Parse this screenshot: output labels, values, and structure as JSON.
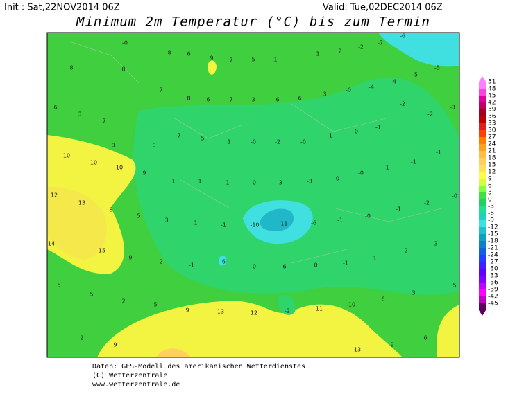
{
  "header": {
    "init": "Init : Sat,22NOV2014 06Z",
    "valid": "Valid: Tue,02DEC2014 06Z",
    "title": "Minimum 2m Temperatur (°C) bis zum Termin"
  },
  "footer": [
    "Daten: GFS-Modell des amerikanischen Wetterdienstes",
    "(C) Wetterzentrale",
    "www.wetterzentrale.de"
  ],
  "colorbar": {
    "levels": [
      51,
      48,
      45,
      42,
      39,
      36,
      33,
      30,
      27,
      24,
      21,
      18,
      15,
      12,
      9,
      6,
      3,
      0,
      -3,
      -6,
      -9,
      -12,
      -15,
      -18,
      -21,
      -24,
      -27,
      -30,
      -33,
      -36,
      -39,
      -42,
      -45
    ],
    "colors": [
      "#ff80ff",
      "#ff40e0",
      "#e000a0",
      "#c00060",
      "#a00020",
      "#c00000",
      "#e02020",
      "#ff4000",
      "#ff8000",
      "#ffa020",
      "#ffc040",
      "#ffd060",
      "#ffe060",
      "#ffff40",
      "#d0ff40",
      "#80ff40",
      "#40e040",
      "#20d060",
      "#20e090",
      "#20d0c0",
      "#40e0e0",
      "#20c0d0",
      "#10a0c0",
      "#1080c0",
      "#1060e0",
      "#2040ff",
      "#4020ff",
      "#6000ff",
      "#8000ff",
      "#c000ff",
      "#ff00ff",
      "#c000c0",
      "#600060"
    ]
  },
  "map_labels": [
    "-0",
    "8",
    "6",
    "9",
    "7",
    "5",
    "1",
    "1",
    "2",
    "-2",
    "-7",
    "-6",
    "-5",
    "-5",
    "8",
    "8",
    "-4",
    "-4",
    "-0",
    "3",
    "6",
    "3",
    "7",
    "7",
    "8",
    "6",
    "7",
    "3",
    "6",
    "6",
    "-3",
    "-2",
    "-2",
    "-1",
    "-0",
    "-1",
    "-0",
    "-2",
    "-0",
    "1",
    "5",
    "7",
    "0",
    "0",
    "10",
    "10",
    "10",
    "9",
    "1",
    "1",
    "1",
    "-0",
    "-3",
    "-3",
    "-0",
    "-0",
    "1",
    "-1",
    "-1",
    "12",
    "13",
    "8",
    "5",
    "3",
    "1",
    "-1",
    "-10",
    "-11",
    "-6",
    "-1",
    "-0",
    "-1",
    "-2",
    "-0",
    "14",
    "15",
    "9",
    "2",
    "-1",
    "-6",
    "-0",
    "6",
    "0",
    "-1",
    "1",
    "2",
    "3",
    "5",
    "5",
    "2",
    "5",
    "9",
    "13",
    "12",
    "-2",
    "11",
    "10",
    "6",
    "3",
    "5",
    "2",
    "9",
    "6",
    "9",
    "13"
  ]
}
